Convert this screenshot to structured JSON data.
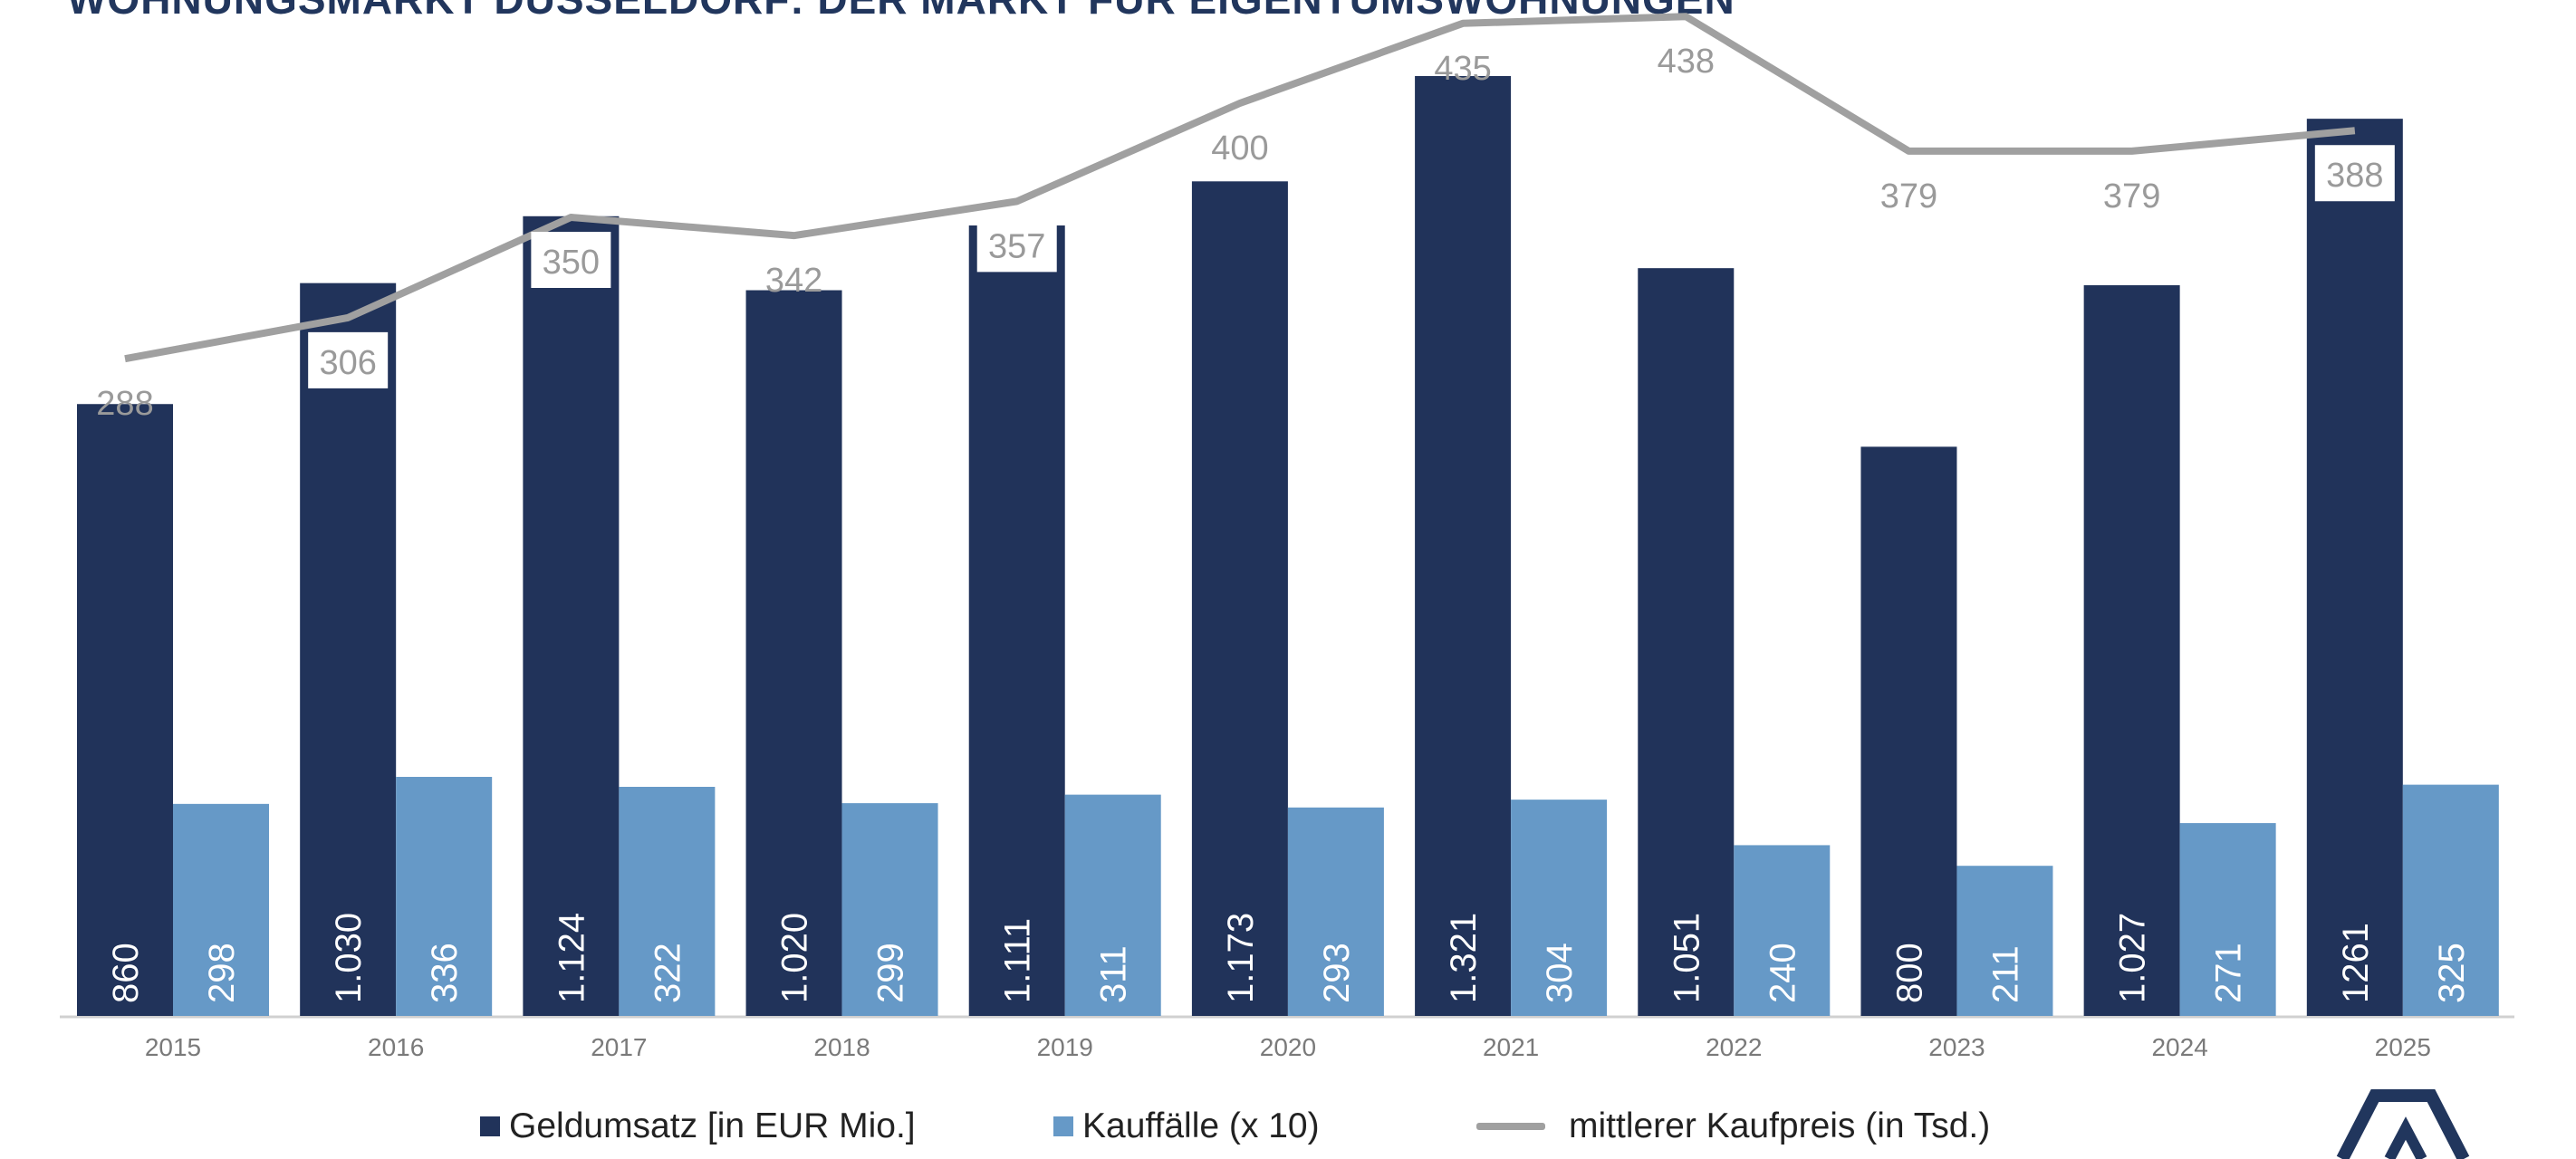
{
  "chart_data": {
    "type": "bar",
    "title": "WOHNUNGSMARKT DÜSSELDORF: DER MARKT FÜR EIGENTUMSWOHNUNGEN",
    "categories": [
      "2015",
      "2016",
      "2017",
      "2018",
      "2019",
      "2020",
      "2021",
      "2022",
      "2023",
      "2024",
      "2025"
    ],
    "series": [
      {
        "name": "Geldumsatz [in EUR Mio.]",
        "type": "bar",
        "color": "#21335a",
        "values": [
          860,
          1030,
          1124,
          1020,
          1111,
          1173,
          1321,
          1051,
          800,
          1027,
          1261
        ],
        "labels": [
          "860",
          "1.030",
          "1.124",
          "1.020",
          "1.111",
          "1.173",
          "1.321",
          "1.051",
          "800",
          "1.027",
          "1261"
        ]
      },
      {
        "name": "Kauffälle (x 10)",
        "type": "bar",
        "color": "#6699c7",
        "values": [
          298,
          336,
          322,
          299,
          311,
          293,
          304,
          240,
          211,
          271,
          325
        ],
        "labels": [
          "298",
          "336",
          "322",
          "299",
          "311",
          "293",
          "304",
          "240",
          "211",
          "271",
          "325"
        ]
      },
      {
        "name": "mittlerer Kaufpreis (in Tsd.)",
        "type": "line",
        "color": "#a0a0a0",
        "values": [
          288,
          306,
          350,
          342,
          357,
          400,
          435,
          438,
          379,
          379,
          388
        ],
        "labels": [
          "288",
          "306",
          "350",
          "342",
          "357",
          "400",
          "435",
          "438",
          "379",
          "379",
          "388"
        ]
      }
    ],
    "grid": false,
    "legend_position": "bottom"
  },
  "logo": {
    "name": "company-logo-icon",
    "color": "#21365d"
  }
}
